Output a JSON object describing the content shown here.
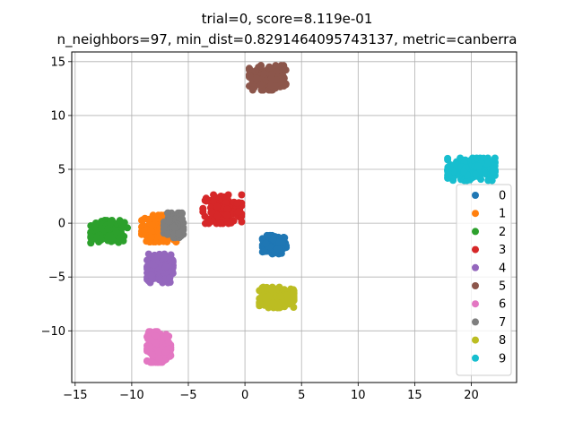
{
  "chart_data": {
    "type": "scatter",
    "title_line1": "trial=0, score=8.119e-01",
    "title_line2": "n_neighbors=97, min_dist=0.8291464095743137, metric=canberra",
    "xlabel": "",
    "ylabel": "",
    "xlim": [
      -15.3,
      24.0
    ],
    "ylim": [
      -14.8,
      15.9
    ],
    "xticks": [
      -15,
      -10,
      -5,
      0,
      5,
      10,
      15,
      20
    ],
    "yticks": [
      -10,
      -5,
      0,
      5,
      10,
      15
    ],
    "grid": true,
    "legend_position": "right",
    "series": [
      {
        "name": "0",
        "color": "#1f77b4",
        "center": [
          2.6,
          -2.0
        ],
        "spread": [
          0.55,
          0.45
        ],
        "n": 140
      },
      {
        "name": "1",
        "color": "#ff7f0e",
        "center": [
          -7.6,
          -0.5
        ],
        "spread": [
          0.8,
          0.65
        ],
        "n": 180
      },
      {
        "name": "2",
        "color": "#2ca02c",
        "center": [
          -12.0,
          -0.8
        ],
        "spread": [
          0.85,
          0.55
        ],
        "n": 170
      },
      {
        "name": "3",
        "color": "#d62728",
        "center": [
          -2.0,
          1.3
        ],
        "spread": [
          0.9,
          0.7
        ],
        "n": 180
      },
      {
        "name": "4",
        "color": "#9467bd",
        "center": [
          -7.5,
          -4.2
        ],
        "spread": [
          0.6,
          0.7
        ],
        "n": 150
      },
      {
        "name": "5",
        "color": "#8c564b",
        "center": [
          2.0,
          13.5
        ],
        "spread": [
          0.85,
          0.6
        ],
        "n": 190
      },
      {
        "name": "6",
        "color": "#e377c2",
        "center": [
          -7.6,
          -11.5
        ],
        "spread": [
          0.55,
          0.75
        ],
        "n": 170
      },
      {
        "name": "7",
        "color": "#7f7f7f",
        "center": [
          -6.3,
          -0.2
        ],
        "spread": [
          0.45,
          0.6
        ],
        "n": 130
      },
      {
        "name": "8",
        "color": "#bcbd22",
        "center": [
          2.8,
          -6.9
        ],
        "spread": [
          0.8,
          0.5
        ],
        "n": 170
      },
      {
        "name": "9",
        "color": "#17becf",
        "center": [
          20.0,
          5.0
        ],
        "spread": [
          1.1,
          0.55
        ],
        "n": 200
      }
    ]
  }
}
